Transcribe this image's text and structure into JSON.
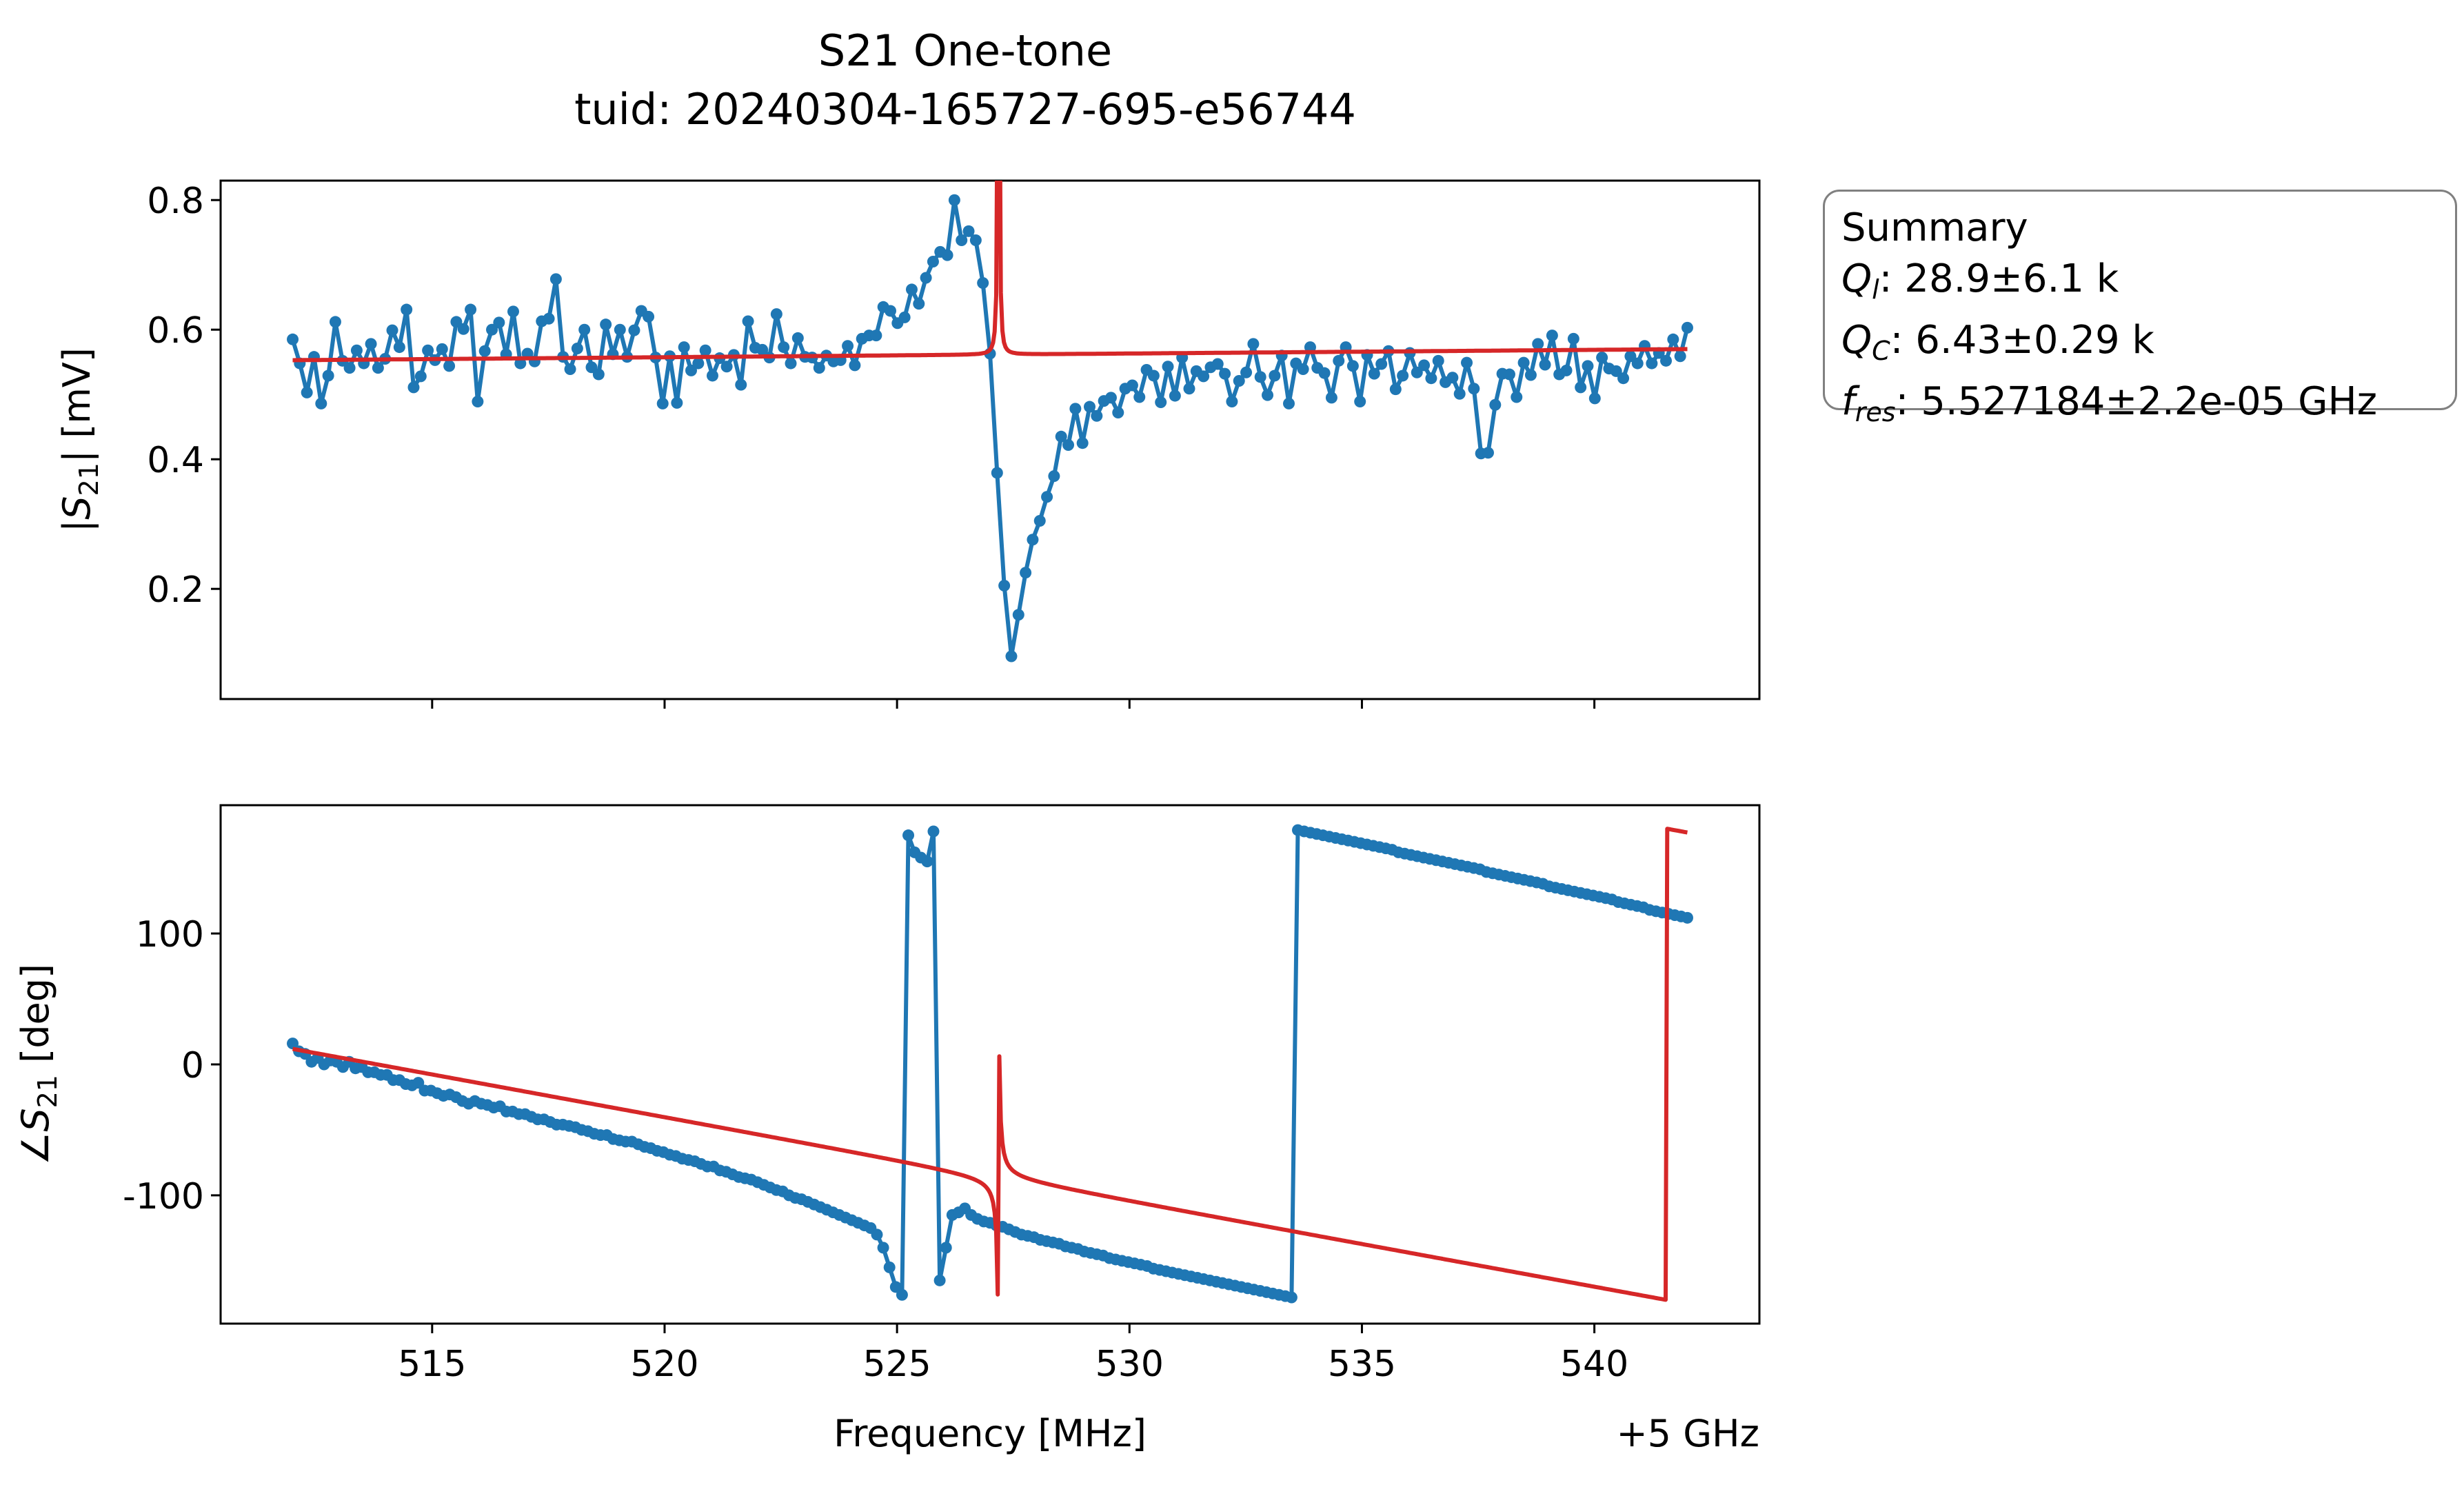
{
  "figure": {
    "title_line1": "S21 One-tone",
    "title_line2": "tuid: 20240304-165727-695-e56744",
    "offset_label": "+5 GHz",
    "colors": {
      "data": "#1f77b4",
      "fit": "#d62728",
      "axes": "#000000",
      "box_edge": "#808080"
    }
  },
  "summary": {
    "title": "Summary",
    "ql": {
      "sym": "Q",
      "sub": "l",
      "text": ": 28.9±6.1 k"
    },
    "qc": {
      "sym": "Q",
      "sub": "C",
      "text": ": 6.43±0.29 k"
    },
    "fres": {
      "sym": "f",
      "sub": "res",
      "text": ": 5.527184±2.2e-05 GHz"
    }
  },
  "chart_data": [
    {
      "type": "line",
      "panel": "magnitude",
      "ylabel": "|S21| [mV]",
      "ylim": [
        0.03,
        0.83
      ],
      "xlim": [
        510.45,
        543.55
      ],
      "yticks": [
        0.2,
        0.4,
        0.6,
        0.8
      ],
      "yticklabels": [
        "0.2",
        "0.4",
        "0.6",
        "0.8"
      ],
      "xticks": [
        515,
        520,
        525,
        530,
        535,
        540
      ],
      "show_xticklabels": false,
      "grid": false,
      "series": [
        {
          "role": "data",
          "marker": "o",
          "x_start": 512.0,
          "x_end": 542.0,
          "y": [
            0.585,
            0.548,
            0.503,
            0.558,
            0.486,
            0.529,
            0.612,
            0.552,
            0.541,
            0.568,
            0.548,
            0.578,
            0.541,
            0.555,
            0.599,
            0.573,
            0.631,
            0.511,
            0.528,
            0.568,
            0.553,
            0.57,
            0.544,
            0.612,
            0.601,
            0.631,
            0.489,
            0.567,
            0.6,
            0.611,
            0.562,
            0.628,
            0.548,
            0.563,
            0.551,
            0.613,
            0.617,
            0.678,
            0.558,
            0.539,
            0.571,
            0.6,
            0.542,
            0.531,
            0.608,
            0.562,
            0.6,
            0.558,
            0.599,
            0.629,
            0.62,
            0.557,
            0.486,
            0.559,
            0.487,
            0.573,
            0.537,
            0.548,
            0.568,
            0.529,
            0.556,
            0.543,
            0.561,
            0.515,
            0.613,
            0.572,
            0.569,
            0.557,
            0.624,
            0.573,
            0.548,
            0.587,
            0.558,
            0.557,
            0.541,
            0.56,
            0.551,
            0.553,
            0.575,
            0.545,
            0.586,
            0.591,
            0.591,
            0.635,
            0.629,
            0.61,
            0.619,
            0.662,
            0.64,
            0.68,
            0.705,
            0.72,
            0.715,
            0.8,
            0.738,
            0.752,
            0.738,
            0.672,
            0.563,
            0.379,
            0.205,
            0.096,
            0.16,
            0.225,
            0.276,
            0.305,
            0.342,
            0.374,
            0.435,
            0.422,
            0.478,
            0.425,
            0.481,
            0.467,
            0.49,
            0.495,
            0.472,
            0.509,
            0.514,
            0.496,
            0.538,
            0.529,
            0.488,
            0.543,
            0.498,
            0.557,
            0.509,
            0.536,
            0.528,
            0.542,
            0.547,
            0.532,
            0.489,
            0.521,
            0.534,
            0.578,
            0.527,
            0.499,
            0.529,
            0.56,
            0.486,
            0.548,
            0.539,
            0.573,
            0.541,
            0.533,
            0.495,
            0.552,
            0.573,
            0.544,
            0.489,
            0.561,
            0.532,
            0.547,
            0.567,
            0.508,
            0.529,
            0.564,
            0.534,
            0.545,
            0.525,
            0.552,
            0.519,
            0.526,
            0.501,
            0.549,
            0.509,
            0.409,
            0.41,
            0.484,
            0.532,
            0.531,
            0.496,
            0.549,
            0.53,
            0.578,
            0.546,
            0.591,
            0.531,
            0.537,
            0.586,
            0.511,
            0.544,
            0.494,
            0.557,
            0.54,
            0.536,
            0.525,
            0.559,
            0.548,
            0.575,
            0.548,
            0.564,
            0.552,
            0.585,
            0.559,
            0.603
          ]
        },
        {
          "role": "fit",
          "marker": "none",
          "model": "notch_resonator",
          "fres": 527.184,
          "Ql": 28900,
          "Qc": 6430,
          "x_start": 512.0,
          "x_end": 542.0
        }
      ]
    },
    {
      "type": "line",
      "panel": "phase",
      "ylabel": "∠S21 [deg]",
      "xlabel": "Frequency [MHz]",
      "ylim": [
        -198,
        198
      ],
      "xlim": [
        510.45,
        543.55
      ],
      "yticks": [
        -100,
        0,
        100
      ],
      "yticklabels": [
        "-100",
        "0",
        "100"
      ],
      "xticks": [
        515,
        520,
        525,
        530,
        535,
        540
      ],
      "xticklabels": [
        "515",
        "520",
        "525",
        "530",
        "535",
        "540"
      ],
      "grid": false,
      "series": [
        {
          "role": "data",
          "marker": "o",
          "x_start": 512.0,
          "x_end": 542.0,
          "y": [
            16,
            10,
            8,
            2,
            5,
            0,
            3,
            2,
            -2,
            2,
            -3,
            -2,
            -6,
            -6,
            -8,
            -8,
            -12,
            -12,
            -15,
            -16,
            -14,
            -20,
            -20,
            -22,
            -24,
            -23,
            -25,
            -28,
            -30,
            -28,
            -30,
            -31,
            -33,
            -32,
            -36,
            -36,
            -38,
            -38,
            -40,
            -42,
            -42,
            -44,
            -46,
            -46,
            -47,
            -48,
            -50,
            -51,
            -53,
            -54,
            -54,
            -57,
            -58,
            -59,
            -59,
            -61,
            -63,
            -64,
            -66,
            -67,
            -69,
            -70,
            -72,
            -73,
            -74,
            -76,
            -78,
            -78,
            -81,
            -82,
            -84,
            -86,
            -87,
            -88,
            -90,
            -92,
            -94,
            -96,
            -97,
            -100,
            -102,
            -103,
            -105,
            -107,
            -109,
            -111,
            -113,
            -115,
            -117,
            -119,
            -121,
            -123,
            -125,
            -130,
            -140,
            -155,
            -170,
            -176,
            175,
            162,
            158,
            155,
            178,
            -165,
            -140,
            -115,
            -113,
            -110,
            -115,
            -118,
            -120,
            -121,
            -123,
            -124,
            -126,
            -128,
            -130,
            -131,
            -132,
            -134,
            -135,
            -136,
            -137,
            -139,
            -140,
            -141,
            -143,
            -144,
            -145,
            -146,
            -148,
            -149,
            -150,
            -151,
            -152,
            -153,
            -154,
            -156,
            -157,
            -158,
            -159,
            -160,
            -161,
            -162,
            -163,
            -164,
            -165,
            -166,
            -167,
            -168,
            -169,
            -170,
            -171,
            -172,
            -173,
            -174,
            -175,
            -176,
            -177,
            -178,
            179,
            178,
            177,
            176,
            175,
            174,
            173,
            172,
            171,
            170,
            169,
            168,
            167,
            166,
            165,
            164,
            162,
            161,
            160,
            159,
            158,
            157,
            156,
            155,
            154,
            153,
            152,
            151,
            150,
            149,
            147,
            146,
            145,
            144,
            143,
            142,
            141,
            140,
            139,
            138,
            136,
            135,
            134,
            133,
            132,
            131,
            130,
            129,
            128,
            127,
            126,
            124,
            123,
            122,
            121,
            120,
            118,
            117,
            116,
            115,
            114,
            113,
            112
          ]
        },
        {
          "role": "fit",
          "marker": "none",
          "model": "notch_resonator_phase",
          "fres": 527.184,
          "Ql": 28900,
          "Qc": 6430,
          "x_start": 512.0,
          "x_end": 542.0
        }
      ]
    }
  ]
}
